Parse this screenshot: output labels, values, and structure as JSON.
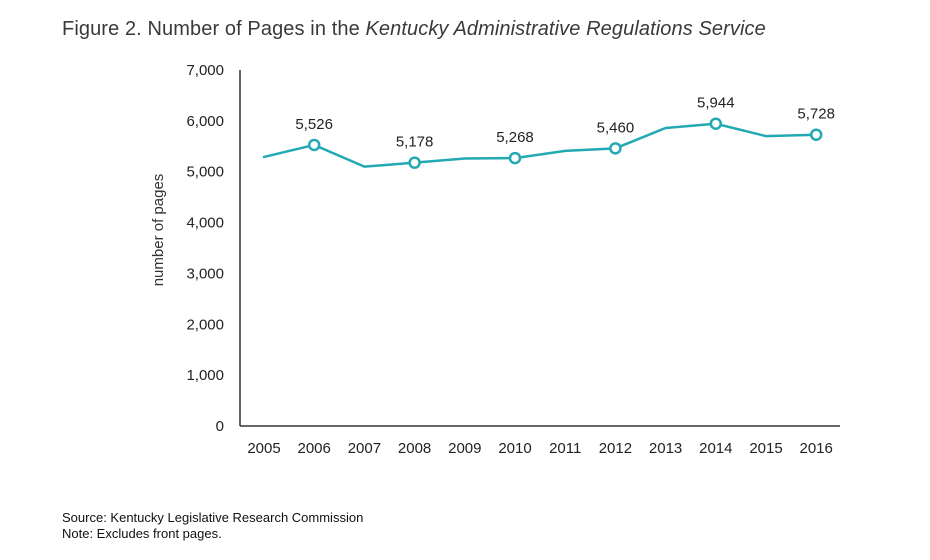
{
  "title_prefix": "Figure 2. Number of Pages in the ",
  "title_italic": "Kentucky Administrative Regulations Service",
  "source": "Source: Kentucky Legislative Research Commission",
  "note": "Note: Excludes front pages.",
  "colors": {
    "line": "#22a9b3",
    "axis": "#333333"
  },
  "chart_data": {
    "type": "line",
    "title": "Figure 2. Number of Pages in the Kentucky Administrative Regulations Service",
    "xlabel": "",
    "ylabel": "number of pages",
    "ylim": [
      0,
      7000
    ],
    "yticks": [
      0,
      1000,
      2000,
      3000,
      4000,
      5000,
      6000,
      7000
    ],
    "ytick_labels": [
      "0",
      "1,000",
      "2,000",
      "3,000",
      "4,000",
      "5,000",
      "6,000",
      "7,000"
    ],
    "categories": [
      "2005",
      "2006",
      "2007",
      "2008",
      "2009",
      "2010",
      "2011",
      "2012",
      "2013",
      "2014",
      "2015",
      "2016"
    ],
    "series": [
      {
        "values": [
          5290,
          5526,
          5100,
          5178,
          5260,
          5268,
          5410,
          5460,
          5860,
          5944,
          5700,
          5728
        ],
        "labels": [
          null,
          "5,526",
          null,
          "5,178",
          null,
          "5,268",
          null,
          "5,460",
          null,
          "5,944",
          null,
          "5,728"
        ]
      }
    ],
    "grid": false,
    "legend": "none"
  }
}
